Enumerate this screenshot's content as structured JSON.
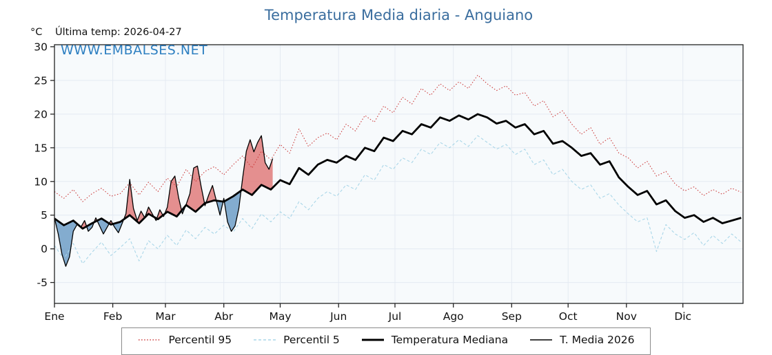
{
  "header": {
    "title": "Temperatura Media diaria - Anguiano",
    "unit_label": "°C",
    "last_temp_label": "Última temp: 2026-04-27",
    "watermark": "WWW.EMBALSES.NET"
  },
  "chart_data": {
    "type": "line",
    "title": "Temperatura Media diaria - Anguiano",
    "xlabel": "",
    "ylabel": "°C",
    "ylim": [
      -8.1,
      30.3
    ],
    "xlim_days": [
      1,
      367
    ],
    "yticks": [
      -5,
      0,
      5,
      10,
      15,
      20,
      25,
      30
    ],
    "grid": true,
    "plot_bg": "#f7fafc",
    "grid_color": "#e4eaf2",
    "fill_above_color": "#e07b7b",
    "fill_below_color": "#6f9ec7",
    "legend_position": "bottom",
    "months": [
      {
        "label": "Ene",
        "day": 1
      },
      {
        "label": "Feb",
        "day": 32
      },
      {
        "label": "Mar",
        "day": 60
      },
      {
        "label": "Abr",
        "day": 91
      },
      {
        "label": "May",
        "day": 121
      },
      {
        "label": "Jun",
        "day": 152
      },
      {
        "label": "Jul",
        "day": 182
      },
      {
        "label": "Ago",
        "day": 213
      },
      {
        "label": "Sep",
        "day": 244
      },
      {
        "label": "Oct",
        "day": 274
      },
      {
        "label": "Nov",
        "day": 305
      },
      {
        "label": "Dic",
        "day": 335
      }
    ],
    "days_common": [
      1,
      6,
      11,
      16,
      21,
      26,
      31,
      36,
      41,
      46,
      51,
      56,
      61,
      66,
      71,
      76,
      81,
      86,
      91,
      96,
      101,
      106,
      111,
      116,
      121,
      126,
      131,
      136,
      141,
      146,
      151,
      156,
      161,
      166,
      171,
      176,
      181,
      186,
      191,
      196,
      201,
      206,
      211,
      216,
      221,
      226,
      231,
      236,
      241,
      246,
      251,
      256,
      261,
      266,
      271,
      276,
      281,
      286,
      291,
      296,
      301,
      306,
      311,
      316,
      321,
      326,
      331,
      336,
      341,
      346,
      351,
      356,
      361,
      366
    ],
    "series": [
      {
        "id": "p95",
        "name": "Percentil 95",
        "color": "#cc3b3b",
        "width": 1.1,
        "dash": "1.5,2.6",
        "values": [
          8.5,
          7.5,
          8.8,
          7.0,
          8.2,
          9.0,
          7.8,
          8.2,
          9.8,
          8.0,
          9.9,
          8.5,
          10.5,
          9.2,
          11.8,
          10.0,
          11.5,
          12.2,
          11.0,
          12.5,
          13.8,
          12.0,
          14.5,
          13.2,
          15.5,
          14.2,
          17.8,
          15.2,
          16.5,
          17.2,
          16.2,
          18.5,
          17.5,
          19.8,
          18.8,
          21.2,
          20.2,
          22.5,
          21.5,
          23.8,
          22.8,
          24.5,
          23.5,
          24.8,
          23.8,
          25.8,
          24.5,
          23.5,
          24.2,
          22.8,
          23.2,
          21.2,
          22.0,
          19.6,
          20.5,
          18.5,
          17.0,
          18.0,
          15.5,
          16.5,
          14.2,
          13.5,
          12.0,
          13.0,
          10.8,
          11.5,
          9.6,
          8.6,
          9.2,
          7.9,
          8.8,
          8.1,
          9.0,
          8.4
        ]
      },
      {
        "id": "p5",
        "name": "Percentil 5",
        "color": "#a9d6e8",
        "width": 1.1,
        "dash": "4,3",
        "values": [
          0.5,
          -1.5,
          0.8,
          -2.2,
          -0.5,
          1.0,
          -1.0,
          0.2,
          1.5,
          -1.8,
          1.2,
          0.0,
          2.0,
          0.5,
          2.8,
          1.5,
          3.2,
          2.2,
          3.5,
          2.5,
          4.5,
          3.0,
          5.2,
          4.0,
          5.5,
          4.5,
          7.0,
          5.8,
          7.5,
          8.5,
          7.8,
          9.5,
          8.8,
          11.0,
          10.2,
          12.5,
          11.8,
          13.5,
          12.8,
          14.8,
          14.0,
          15.8,
          15.0,
          16.2,
          15.2,
          16.8,
          15.8,
          14.8,
          15.5,
          14.0,
          14.8,
          12.5,
          13.2,
          11.0,
          11.8,
          10.0,
          8.8,
          9.5,
          7.5,
          8.2,
          6.5,
          5.2,
          4.0,
          4.6,
          -0.4,
          3.6,
          2.2,
          1.4,
          2.4,
          0.5,
          2.0,
          0.8,
          2.2,
          1.0
        ]
      },
      {
        "id": "median",
        "name": "Temperatura Mediana",
        "color": "#000000",
        "width": 2.8,
        "dash": "",
        "values": [
          4.5,
          3.5,
          4.2,
          3.0,
          3.8,
          4.5,
          3.6,
          4.0,
          5.0,
          3.8,
          5.2,
          4.4,
          5.5,
          4.8,
          6.5,
          5.5,
          6.8,
          7.2,
          7.0,
          7.8,
          8.8,
          8.0,
          9.5,
          8.8,
          10.2,
          9.6,
          12.0,
          11.0,
          12.5,
          13.2,
          12.8,
          13.8,
          13.2,
          15.0,
          14.5,
          16.5,
          16.0,
          17.5,
          17.0,
          18.5,
          18.0,
          19.5,
          19.0,
          19.8,
          19.2,
          20.0,
          19.5,
          18.6,
          19.0,
          18.0,
          18.5,
          17.0,
          17.5,
          15.6,
          16.0,
          15.0,
          13.8,
          14.2,
          12.5,
          13.0,
          10.6,
          9.2,
          8.0,
          8.6,
          6.6,
          7.2,
          5.6,
          4.6,
          5.0,
          4.0,
          4.6,
          3.8,
          4.2,
          4.6
        ]
      },
      {
        "id": "t2026",
        "name": "T. Media 2026",
        "color": "#000000",
        "width": 1.3,
        "dash": "",
        "days": [
          1,
          3,
          5,
          7,
          9,
          11,
          13,
          15,
          17,
          19,
          21,
          23,
          25,
          27,
          29,
          31,
          33,
          35,
          37,
          39,
          41,
          43,
          45,
          47,
          49,
          51,
          53,
          55,
          57,
          59,
          61,
          63,
          65,
          67,
          69,
          71,
          73,
          75,
          77,
          79,
          81,
          83,
          85,
          87,
          89,
          91,
          93,
          95,
          97,
          99,
          101,
          103,
          105,
          107,
          109,
          111,
          113,
          115,
          117
        ],
        "values": [
          4.6,
          2.2,
          -0.8,
          -2.6,
          -1.2,
          2.6,
          3.6,
          3.2,
          4.2,
          2.6,
          3.2,
          4.6,
          3.4,
          2.2,
          3.2,
          4.2,
          3.2,
          2.4,
          3.8,
          5.2,
          10.3,
          6.0,
          4.2,
          5.6,
          4.6,
          6.2,
          5.2,
          4.2,
          5.8,
          4.8,
          6.2,
          10.0,
          10.8,
          7.6,
          5.2,
          6.6,
          8.2,
          12.0,
          12.3,
          9.2,
          6.4,
          8.0,
          9.4,
          7.2,
          5.0,
          7.5,
          4.0,
          2.6,
          3.4,
          6.0,
          10.5,
          14.5,
          16.2,
          14.4,
          15.8,
          16.8,
          12.8,
          11.8,
          13.4
        ]
      }
    ],
    "legend": [
      {
        "series": "p95",
        "label": "Percentil 95"
      },
      {
        "series": "p5",
        "label": "Percentil 5"
      },
      {
        "series": "median",
        "label": "Temperatura Mediana"
      },
      {
        "series": "t2026",
        "label": "T. Media 2026"
      }
    ]
  }
}
